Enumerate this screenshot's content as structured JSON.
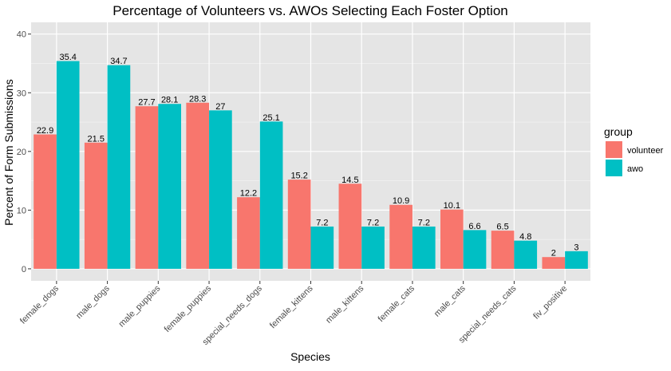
{
  "chart_data": {
    "type": "bar",
    "title": "Percentage of Volunteers vs. AWOs Selecting Each Foster Option",
    "xlabel": "Species",
    "ylabel": "Percent of Form Submissions",
    "ylim": [
      -2.05,
      42
    ],
    "yticks": [
      0,
      10,
      20,
      30,
      40
    ],
    "grid": true,
    "legend": {
      "title": "group",
      "placement": "right"
    },
    "categories": [
      "female_dogs",
      "male_dogs",
      "male_puppies",
      "female_puppies",
      "special_needs_dogs",
      "female_kittens",
      "male_kittens",
      "female_cats",
      "male_cats",
      "special_needs_cats",
      "fiv_positive"
    ],
    "series": [
      {
        "name": "volunteer",
        "color": "#F8766D",
        "values": [
          22.9,
          21.5,
          27.7,
          28.3,
          12.2,
          15.2,
          14.5,
          10.9,
          10.1,
          6.5,
          2
        ]
      },
      {
        "name": "awo",
        "color": "#00BFC4",
        "values": [
          35.4,
          34.7,
          28.1,
          27,
          25.1,
          7.2,
          7.2,
          7.2,
          6.6,
          4.8,
          3
        ]
      }
    ]
  },
  "style": {
    "panel_bg": "#E5E5E5",
    "grid_major": "#FFFFFF",
    "text_color": "#000000",
    "axis_text_color": "#4D4D4D"
  }
}
